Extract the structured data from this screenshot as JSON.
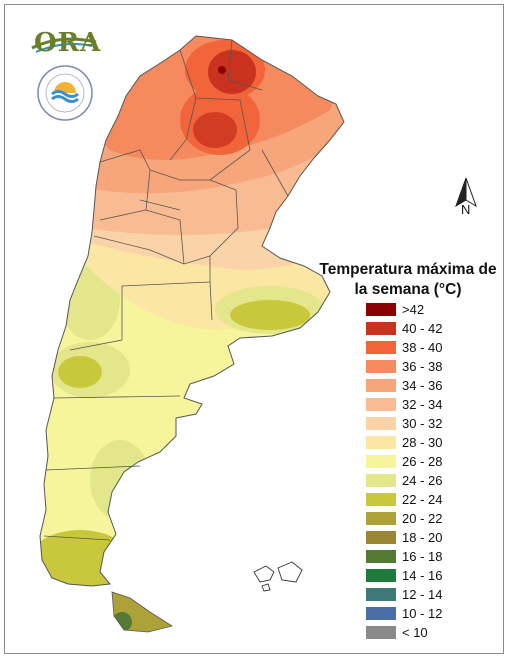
{
  "org": {
    "logo_text": "ORA",
    "seal_name": "seal-smn-argentina"
  },
  "north_label": "N",
  "legend": {
    "title": "Temperatura máxima de la semana (°C)",
    "items": [
      {
        "label": ">42",
        "color": "#8b0000"
      },
      {
        "label": "40 - 42",
        "color": "#c8321e"
      },
      {
        "label": "38 - 40",
        "color": "#f2643a"
      },
      {
        "label": "36 - 38",
        "color": "#f58a5e"
      },
      {
        "label": "34 - 36",
        "color": "#f7a57a"
      },
      {
        "label": "32 - 34",
        "color": "#f8bb92"
      },
      {
        "label": "30 - 32",
        "color": "#fad4a8"
      },
      {
        "label": "28 - 30",
        "color": "#fbe6a4"
      },
      {
        "label": "26 - 28",
        "color": "#f7f59c"
      },
      {
        "label": "24 - 26",
        "color": "#e3e68a"
      },
      {
        "label": "22 - 24",
        "color": "#c9c83c"
      },
      {
        "label": "20 - 22",
        "color": "#ada23a"
      },
      {
        "label": "18 - 20",
        "color": "#9b8636"
      },
      {
        "label": "16 - 18",
        "color": "#557a34"
      },
      {
        "label": "14 - 16",
        "color": "#1f7a3c"
      },
      {
        "label": "12 - 14",
        "color": "#3d7a78"
      },
      {
        "label": "10 - 12",
        "color": "#4a6fa6"
      },
      {
        "label": "< 10",
        "color": "#8a8a8a"
      }
    ]
  }
}
